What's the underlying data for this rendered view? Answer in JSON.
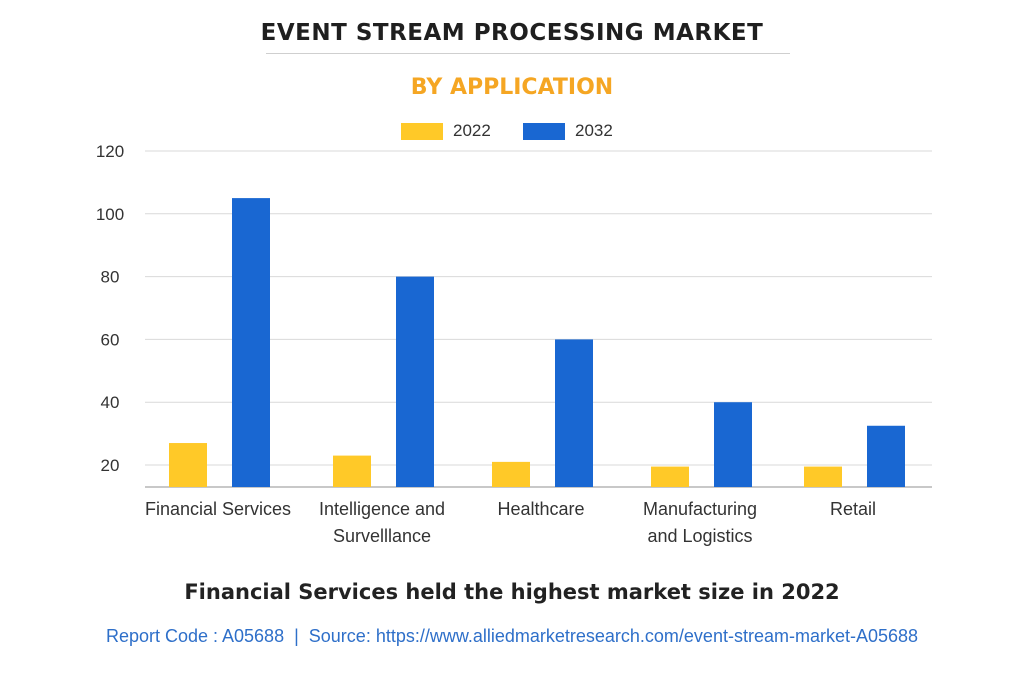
{
  "header": {
    "title": "EVENT STREAM PROCESSING MARKET",
    "subtitle": "BY APPLICATION"
  },
  "footer": {
    "headline": "Financial Services held the highest market size in 2022",
    "report_code": "Report Code : A05688",
    "separator": "|",
    "source": "Source: https://www.alliedmarketresearch.com/event-stream-market-A05688"
  },
  "colors": {
    "series_2022": "#ffc928",
    "series_2032": "#1967d2",
    "grid": "#d9d9d9",
    "axis": "#b5b5b5",
    "accent": "#f5a623"
  },
  "chart_data": {
    "type": "bar",
    "title": "EVENT STREAM PROCESSING MARKET",
    "subtitle": "BY APPLICATION",
    "xlabel": "",
    "ylabel": "",
    "ylim": [
      13,
      120
    ],
    "yticks": [
      20,
      40,
      60,
      80,
      100,
      120
    ],
    "grid": true,
    "legend_position": "top-center",
    "categories": [
      [
        "Financial Services"
      ],
      [
        "Intelligence and",
        "Survelllance"
      ],
      [
        "Healthcare"
      ],
      [
        "Manufacturing",
        "and Logistics"
      ],
      [
        "Retail"
      ]
    ],
    "series": [
      {
        "name": "2022",
        "values": [
          27,
          23,
          21,
          19.5,
          19.5
        ]
      },
      {
        "name": "2032",
        "values": [
          105,
          80,
          60,
          40,
          32.5
        ]
      }
    ]
  }
}
